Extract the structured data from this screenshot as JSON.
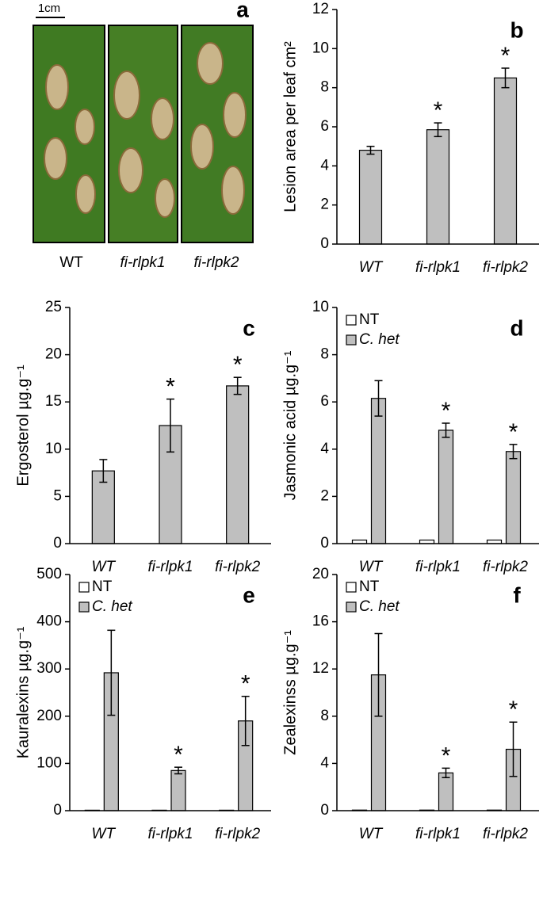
{
  "image_panel": {
    "label": "a",
    "scale_bar": "1cm",
    "captions": [
      "WT",
      "fi-rlpk1",
      "fi-rlpk2"
    ]
  },
  "chart_data": [
    {
      "type": "bar",
      "label": "b",
      "ylabel": "Lesion area per leaf cm²",
      "categories": [
        "WT",
        "fi-rlpk1",
        "fi-rlpk2"
      ],
      "series": [
        {
          "color": "#bfbfbf",
          "values": [
            4.8,
            5.85,
            8.5
          ],
          "errors": [
            0.2,
            0.35,
            0.5
          ]
        }
      ],
      "significance": [
        null,
        "*",
        "*"
      ],
      "ylim": [
        0,
        12
      ],
      "yticks": [
        0,
        2,
        4,
        6,
        8,
        10,
        12
      ]
    },
    {
      "type": "bar",
      "label": "c",
      "ylabel": "Ergosterol µg.g⁻¹",
      "categories": [
        "WT",
        "fi-rlpk1",
        "fi-rlpk2"
      ],
      "series": [
        {
          "color": "#bfbfbf",
          "values": [
            7.7,
            12.5,
            16.7
          ],
          "errors": [
            1.2,
            2.8,
            0.9
          ]
        }
      ],
      "significance": [
        null,
        "*",
        "*"
      ],
      "ylim": [
        0,
        25
      ],
      "yticks": [
        0,
        5,
        10,
        15,
        20,
        25
      ]
    },
    {
      "type": "bar",
      "label": "d",
      "ylabel": "Jasmonic acid µg.g⁻¹",
      "categories": [
        "WT",
        "fi-rlpk1",
        "fi-rlpk2"
      ],
      "series": [
        {
          "name": "NT",
          "color": "#ffffff",
          "values": [
            0.15,
            0.15,
            0.15
          ]
        },
        {
          "name": "C. het",
          "color": "#bfbfbf",
          "values": [
            6.15,
            4.8,
            3.9
          ],
          "errors": [
            0.75,
            0.3,
            0.3
          ]
        }
      ],
      "significance": [
        null,
        "*",
        "*"
      ],
      "ylim": [
        0,
        10
      ],
      "yticks": [
        0,
        2,
        4,
        6,
        8,
        10
      ],
      "legend": "upper left"
    },
    {
      "type": "bar",
      "label": "e",
      "ylabel": "Kauralexins µg.g⁻¹",
      "categories": [
        "WT",
        "fi-rlpk1",
        "fi-rlpk2"
      ],
      "series": [
        {
          "name": "NT",
          "color": "#ffffff",
          "values": [
            1,
            1,
            1
          ]
        },
        {
          "name": "C. het",
          "color": "#bfbfbf",
          "values": [
            292,
            85,
            190
          ],
          "errors": [
            90,
            7,
            52
          ]
        }
      ],
      "significance": [
        null,
        "*",
        "*"
      ],
      "ylim": [
        0,
        500
      ],
      "yticks": [
        0,
        100,
        200,
        300,
        400,
        500
      ],
      "legend": "upper left"
    },
    {
      "type": "bar",
      "label": "f",
      "ylabel": "Zealexinss µg.g⁻¹",
      "categories": [
        "WT",
        "fi-rlpk1",
        "fi-rlpk2"
      ],
      "series": [
        {
          "name": "NT",
          "color": "#ffffff",
          "values": [
            0.05,
            0.05,
            0.05
          ]
        },
        {
          "name": "C. het",
          "color": "#bfbfbf",
          "values": [
            11.5,
            3.2,
            5.2
          ],
          "errors": [
            3.5,
            0.4,
            2.3
          ]
        }
      ],
      "significance": [
        null,
        "*",
        "*"
      ],
      "ylim": [
        0,
        20
      ],
      "yticks": [
        0,
        4,
        8,
        12,
        16,
        20
      ],
      "legend": "upper left"
    }
  ]
}
